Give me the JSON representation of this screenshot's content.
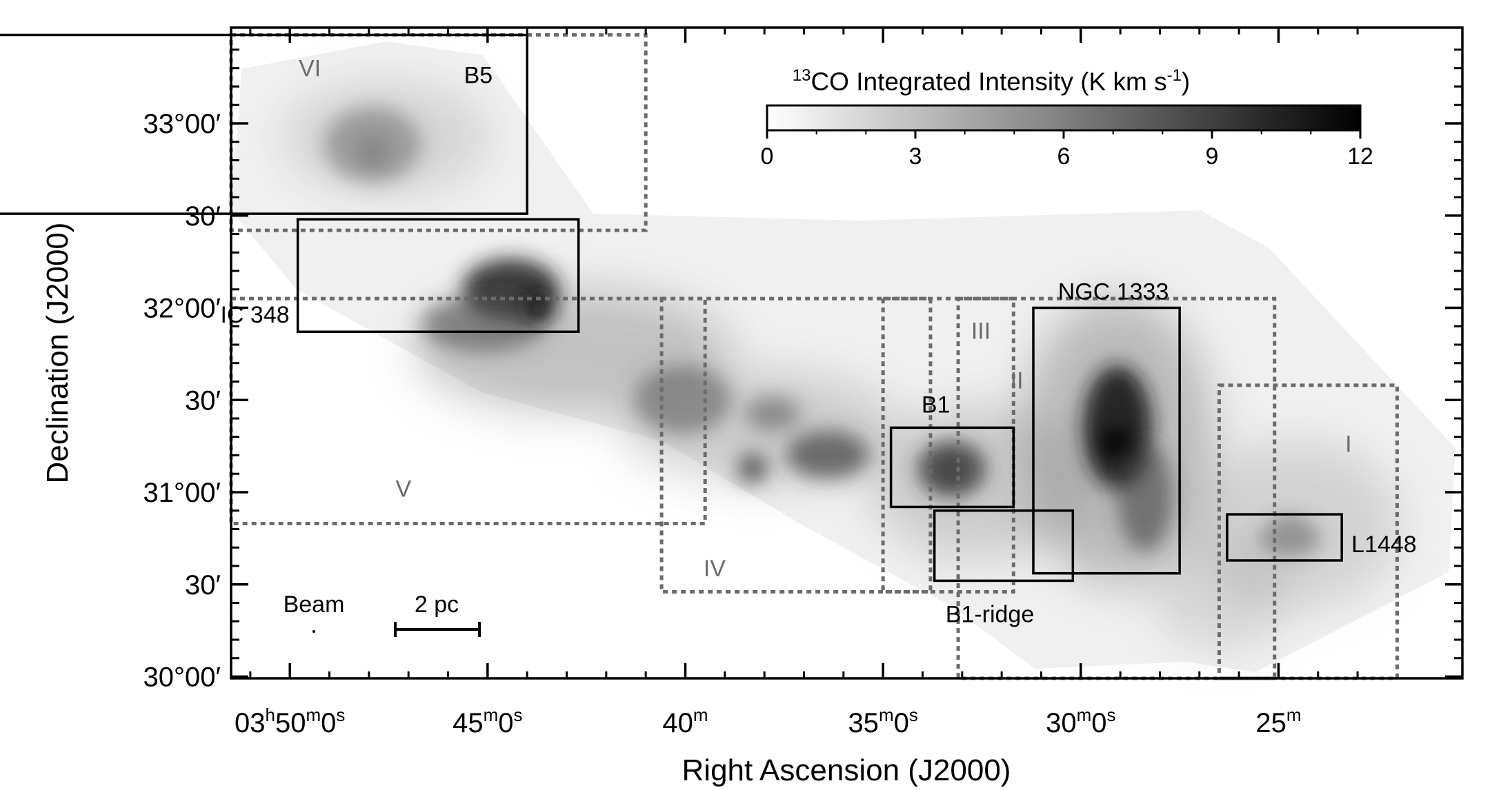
{
  "chart_data": {
    "type": "heatmap",
    "title": "",
    "xlabel": "Right Ascension (J2000)",
    "ylabel": "Declination (J2000)",
    "x_ticks": [
      {
        "label_main": "03",
        "sup1": "h",
        "mid": "50",
        "sup2": "m",
        "end": "0",
        "sup3": "s",
        "value_min": 230.0
      },
      {
        "label_main": "45",
        "sup1": "m",
        "mid": "0",
        "sup2": "s",
        "end": "",
        "sup3": "",
        "value_min": 225.0
      },
      {
        "label_main": "40",
        "sup1": "m",
        "mid": "",
        "sup2": "",
        "end": "",
        "sup3": "",
        "value_min": 220.0
      },
      {
        "label_main": "35",
        "sup1": "m",
        "mid": "0",
        "sup2": "s",
        "end": "",
        "sup3": "",
        "value_min": 215.0
      },
      {
        "label_main": "30",
        "sup1": "m",
        "mid": "0",
        "sup2": "s",
        "end": "",
        "sup3": "",
        "value_min": 210.0
      },
      {
        "label_main": "25",
        "sup1": "m",
        "mid": "",
        "sup2": "",
        "end": "",
        "sup3": "",
        "value_min": 205.0
      }
    ],
    "y_ticks": [
      {
        "label": "33°00′",
        "value_deg": 33.0
      },
      {
        "label": "30′",
        "value_deg": 32.5
      },
      {
        "label": "32°00′",
        "value_deg": 32.0
      },
      {
        "label": "30′",
        "value_deg": 31.5
      },
      {
        "label": "31°00′",
        "value_deg": 31.0
      },
      {
        "label": "30′",
        "value_deg": 30.5
      },
      {
        "label": "30°00′",
        "value_deg": 30.0
      }
    ],
    "colorbar": {
      "label_prefix": "13",
      "label_main": "CO Integrated Intensity (K km s",
      "label_exp": "-1",
      "label_suffix": ")",
      "ticks": [
        "0",
        "3",
        "6",
        "9",
        "12"
      ],
      "range": [
        0,
        12
      ],
      "colors": [
        "#ffffff",
        "#000000"
      ]
    },
    "regions": [
      {
        "label": "I",
        "ra_min": [
          206.5,
          202.0
        ],
        "dec_deg": [
          29.98,
          31.58
        ]
      },
      {
        "label": "II",
        "ra_min": [
          213.1,
          205.1
        ],
        "dec_deg": [
          29.98,
          32.05
        ]
      },
      {
        "label": "III",
        "ra_min": [
          215.0,
          211.7
        ],
        "dec_deg": [
          30.46,
          32.05
        ]
      },
      {
        "label": "IV",
        "ra_min": [
          220.6,
          213.8
        ],
        "dec_deg": [
          30.46,
          32.05
        ]
      },
      {
        "label": "V",
        "ra_min": [
          234.9,
          219.5
        ],
        "dec_deg": [
          30.83,
          32.05
        ]
      },
      {
        "label": "VI",
        "ra_min": [
          239.0,
          221.0
        ],
        "dec_deg": [
          32.42,
          33.48
        ]
      }
    ],
    "sources": [
      {
        "label": "B5",
        "ra_min": [
          238.5,
          224.0
        ],
        "dec_deg": [
          32.51,
          33.48
        ]
      },
      {
        "label": "IC 348",
        "ra_min": [
          229.8,
          222.7
        ],
        "dec_deg": [
          31.87,
          32.48
        ]
      },
      {
        "label": "NGC 1333",
        "ra_min": [
          211.2,
          207.5
        ],
        "dec_deg": [
          30.56,
          32.0
        ]
      },
      {
        "label": "B1",
        "ra_min": [
          214.8,
          211.7
        ],
        "dec_deg": [
          30.92,
          31.35
        ]
      },
      {
        "label": "B1-ridge",
        "ra_min": [
          213.7,
          210.2
        ],
        "dec_deg": [
          30.52,
          30.9
        ]
      },
      {
        "label": "L1448",
        "ra_min": [
          206.3,
          203.4
        ],
        "dec_deg": [
          30.63,
          30.88
        ]
      }
    ],
    "emission_peaks": [
      {
        "ra_min": 223.7,
        "dec_deg": 32.0,
        "intensity": 11
      },
      {
        "ra_min": 209.1,
        "dec_deg": 31.27,
        "intensity": 12
      },
      {
        "ra_min": 213.3,
        "dec_deg": 31.12,
        "intensity": 9
      },
      {
        "ra_min": 218.3,
        "dec_deg": 31.13,
        "intensity": 8
      },
      {
        "ra_min": 227.9,
        "dec_deg": 32.85,
        "intensity": 6
      },
      {
        "ra_min": 204.7,
        "dec_deg": 30.78,
        "intensity": 5
      }
    ],
    "grid": false,
    "legend": "none"
  },
  "annotations": {
    "beam_label": "Beam",
    "scale_label": "2 pc"
  },
  "colors": {
    "region_box": "#6b6b6b",
    "source_box": "#000000",
    "region_label": "#6b6b6b",
    "axes": "#000000"
  }
}
